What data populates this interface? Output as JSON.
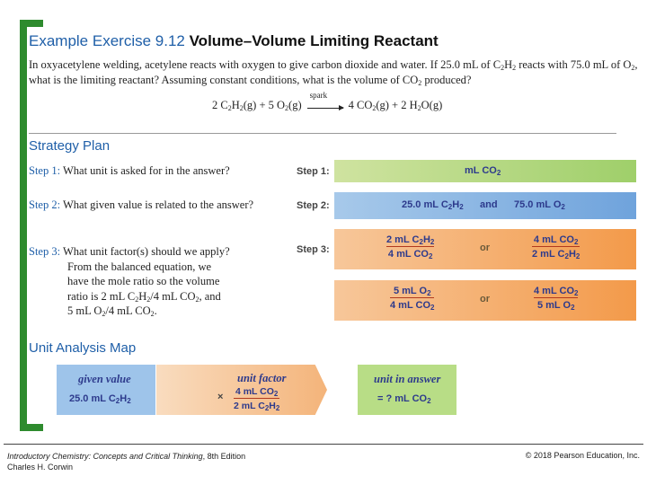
{
  "title": {
    "highlight": "Example Exercise 9.12",
    "rest": "Volume–Volume Limiting Reactant"
  },
  "problem": {
    "a": "In oxyacetylene welding, acetylene reacts with oxygen to give carbon dioxide and water. If 25.0 mL of C",
    "b": "H",
    "c": " reacts with 75.0 mL of O",
    "d": ", what is the limiting reactant? Assuming constant conditions, what is the volume of CO",
    "e": " produced?"
  },
  "equation": {
    "left": "2 C",
    "mid1": "H",
    "mid2": "(g) + 5 O",
    "mid3": "(g)",
    "spark": "spark",
    "right1": "4 CO",
    "right2": "(g) + 2 H",
    "right3": "O(g)"
  },
  "strategy": {
    "heading": "Strategy Plan",
    "step1": {
      "lbl": "Step 1:",
      "text": " What unit is asked for in the answer?"
    },
    "step2": {
      "lbl": "Step 2:",
      "text": " What given value is related to the answer?"
    },
    "step3": {
      "lbl": "Step 3:",
      "text": " What unit factor(s) should we apply?",
      "l1": "From the balanced equation, we",
      "l2": "have the mole ratio so the volume",
      "l3a": "ratio is 2 mL C",
      "l3b": "H",
      "l3c": "/4 mL CO",
      "l3d": ", and",
      "l4a": "5 mL O",
      "l4b": "/4 mL CO",
      "l4c": "."
    }
  },
  "diagram": {
    "step1_label": "Step 1:",
    "step2_label": "Step 2:",
    "step3_label": "Step 3:",
    "unit": "mL CO",
    "given_a": "25.0 mL C",
    "given_h": "H",
    "and": "and",
    "given_b": "75.0 mL O",
    "or": "or",
    "f1n_a": "2  mL  C",
    "f1n_b": "H",
    "f1d": "4  mL  CO",
    "f2n": "4  mL  CO",
    "f2d_a": "2  mL  C",
    "f2d_b": "H",
    "f3n": "5  mL  O",
    "f3d": "4  mL  CO",
    "f4n": "4  mL  CO",
    "f4d": "5  mL  O"
  },
  "map": {
    "heading": "Unit Analysis Map",
    "given_label": "given value",
    "given_value_a": "25.0 mL C",
    "given_value_b": "H",
    "times": "×",
    "factor_label": "unit factor",
    "factor_num": "4 mL CO",
    "factor_den_a": "2 mL C",
    "factor_den_b": "H",
    "answer_label": "unit in answer",
    "answer_value": "= ? mL CO"
  },
  "sub2": "2",
  "footer": {
    "book": "Introductory Chemistry: Concepts and Critical Thinking",
    "edition": ", 8th Edition",
    "author": "Charles H. Corwin",
    "copyright": "© 2018 Pearson Education, Inc."
  }
}
